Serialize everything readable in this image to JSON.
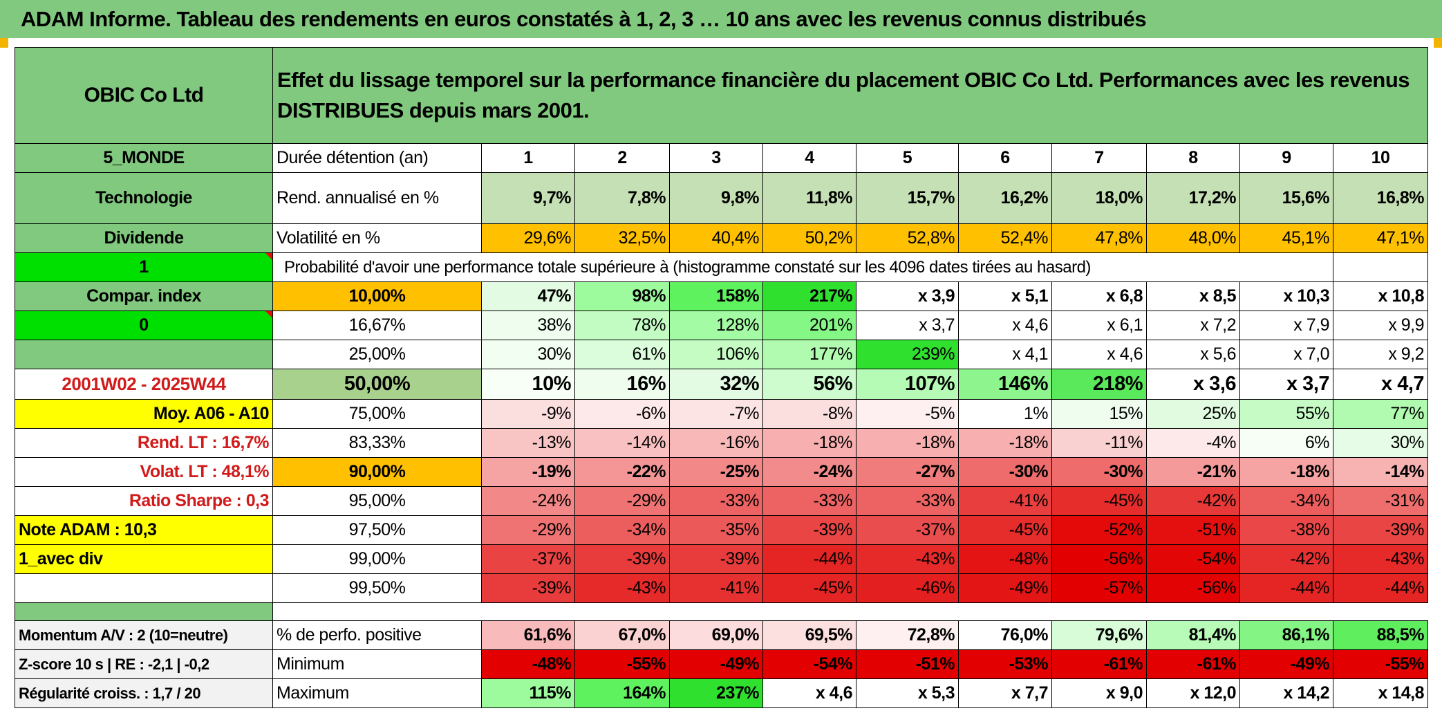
{
  "title": "ADAM Informe. Tableau des rendements en euros constatés à 1, 2, 3 … 10 ans avec les revenus connus distribués",
  "company": "OBIC Co Ltd",
  "description": "Effet du lissage temporel sur la performance financière du placement OBIC Co Ltd. Performances avec les revenus DISTRIBUES depuis mars 2001.",
  "colors": {
    "header_green": "#80c97e",
    "bright_green": "#00e000",
    "yellow": "#ffff00",
    "orange": "#ffc000",
    "red_text": "#d11b1b"
  },
  "left": {
    "zone": "5_MONDE",
    "sector": "Technologie",
    "dividend": "Dividende",
    "one": "1",
    "compar": "Compar. index",
    "zero": "0",
    "period": "2001W02 - 2025W44",
    "moy": "Moy. A06 - A10",
    "rend_lt": "Rend. LT :   16,7%",
    "volat_lt": "Volat. LT :   48,1%",
    "sharpe": "Ratio Sharpe :    0,3",
    "note": "Note ADAM : 10,3",
    "avec_div": "1_avec div",
    "momentum": "Momentum A/V : 2 (10=neutre)",
    "zscore": "Z-score 10 s | RE : -2,1 | -0,2",
    "regularite": "Régularité croiss. : 1,7 / 20"
  },
  "labels": {
    "duree": "Durée détention (an)",
    "rend": "Rend. annualisé en %",
    "vol": "Volatilité en %",
    "proba": "Probabilité d'avoir une performance totale supérieure à (histogramme constaté sur les 4096 dates tirées au hasard)",
    "perf_pos": "% de perfo. positive",
    "minimum": "Minimum",
    "maximum": "Maximum"
  },
  "years": [
    "1",
    "2",
    "3",
    "4",
    "5",
    "6",
    "7",
    "8",
    "9",
    "10"
  ],
  "rend": [
    "9,7%",
    "7,8%",
    "9,8%",
    "11,8%",
    "15,7%",
    "16,2%",
    "18,0%",
    "17,2%",
    "15,6%",
    "16,8%"
  ],
  "vol": [
    "29,6%",
    "32,5%",
    "40,4%",
    "50,2%",
    "52,8%",
    "52,4%",
    "47,8%",
    "48,0%",
    "45,1%",
    "47,1%"
  ],
  "prob_rows": [
    {
      "pct": "10,00%",
      "values": [
        "47%",
        "98%",
        "158%",
        "217%",
        "x 3,9",
        "x 5,1",
        "x 6,8",
        "x 8,5",
        "x 10,3",
        "x 10,8"
      ]
    },
    {
      "pct": "16,67%",
      "values": [
        "38%",
        "78%",
        "128%",
        "201%",
        "x 3,7",
        "x 4,6",
        "x 6,1",
        "x 7,2",
        "x 7,9",
        "x 9,9"
      ]
    },
    {
      "pct": "25,00%",
      "values": [
        "30%",
        "61%",
        "106%",
        "177%",
        "239%",
        "x 4,1",
        "x 4,6",
        "x 5,6",
        "x 7,0",
        "x 9,2"
      ]
    },
    {
      "pct": "50,00%",
      "values": [
        "10%",
        "16%",
        "32%",
        "56%",
        "107%",
        "146%",
        "218%",
        "x 3,6",
        "x 3,7",
        "x 4,7"
      ]
    },
    {
      "pct": "75,00%",
      "values": [
        "-9%",
        "-6%",
        "-7%",
        "-8%",
        "-5%",
        "1%",
        "15%",
        "25%",
        "55%",
        "77%"
      ]
    },
    {
      "pct": "83,33%",
      "values": [
        "-13%",
        "-14%",
        "-16%",
        "-18%",
        "-18%",
        "-18%",
        "-11%",
        "-4%",
        "6%",
        "30%"
      ]
    },
    {
      "pct": "90,00%",
      "values": [
        "-19%",
        "-22%",
        "-25%",
        "-24%",
        "-27%",
        "-30%",
        "-30%",
        "-21%",
        "-18%",
        "-14%"
      ]
    },
    {
      "pct": "95,00%",
      "values": [
        "-24%",
        "-29%",
        "-33%",
        "-33%",
        "-33%",
        "-41%",
        "-45%",
        "-42%",
        "-34%",
        "-31%"
      ]
    },
    {
      "pct": "97,50%",
      "values": [
        "-29%",
        "-34%",
        "-35%",
        "-39%",
        "-37%",
        "-45%",
        "-52%",
        "-51%",
        "-38%",
        "-39%"
      ]
    },
    {
      "pct": "99,00%",
      "values": [
        "-37%",
        "-39%",
        "-39%",
        "-44%",
        "-43%",
        "-48%",
        "-56%",
        "-54%",
        "-42%",
        "-43%"
      ]
    },
    {
      "pct": "99,50%",
      "values": [
        "-39%",
        "-43%",
        "-41%",
        "-45%",
        "-46%",
        "-49%",
        "-57%",
        "-56%",
        "-44%",
        "-44%"
      ]
    }
  ],
  "perf_pos": [
    "61,6%",
    "67,0%",
    "69,0%",
    "69,5%",
    "72,8%",
    "76,0%",
    "79,6%",
    "81,4%",
    "86,1%",
    "88,5%"
  ],
  "minimum": [
    "-48%",
    "-55%",
    "-49%",
    "-54%",
    "-51%",
    "-53%",
    "-61%",
    "-61%",
    "-49%",
    "-55%"
  ],
  "maximum": [
    "115%",
    "164%",
    "237%",
    "x 4,6",
    "x 5,3",
    "x 7,7",
    "x 9,0",
    "x 12,0",
    "x 14,2",
    "x 14,8"
  ]
}
